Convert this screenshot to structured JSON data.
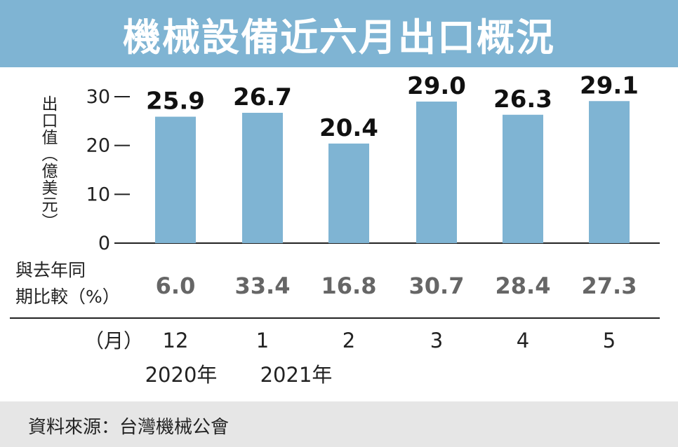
{
  "title": "機械設備近六月出口概況",
  "source": "資料來源：台灣機械公會",
  "colors": {
    "title_bg": "#7fb4d3",
    "bar": "#7fb4d3",
    "footer_bg": "#e6e6e6"
  },
  "chart_data": {
    "type": "bar",
    "title": "機械設備近六月出口概況",
    "ylabel": "出口值（億美元）",
    "yticks": [
      "30",
      "20",
      "10",
      "0"
    ],
    "ylim": [
      0,
      30
    ],
    "categories": [
      "12",
      "1",
      "2",
      "3",
      "4",
      "5"
    ],
    "values": [
      25.9,
      26.7,
      20.4,
      29.0,
      26.3,
      29.1
    ],
    "value_labels": [
      "25.9",
      "26.7",
      "20.4",
      "29.0",
      "26.3",
      "29.1"
    ],
    "yoy_label": [
      "與去年同",
      "期比較（%）"
    ],
    "yoy": [
      "6.0",
      "33.4",
      "16.8",
      "30.7",
      "28.4",
      "27.3"
    ],
    "month_label": "（月）",
    "year_labels": [
      "2020年",
      "2021年"
    ]
  }
}
